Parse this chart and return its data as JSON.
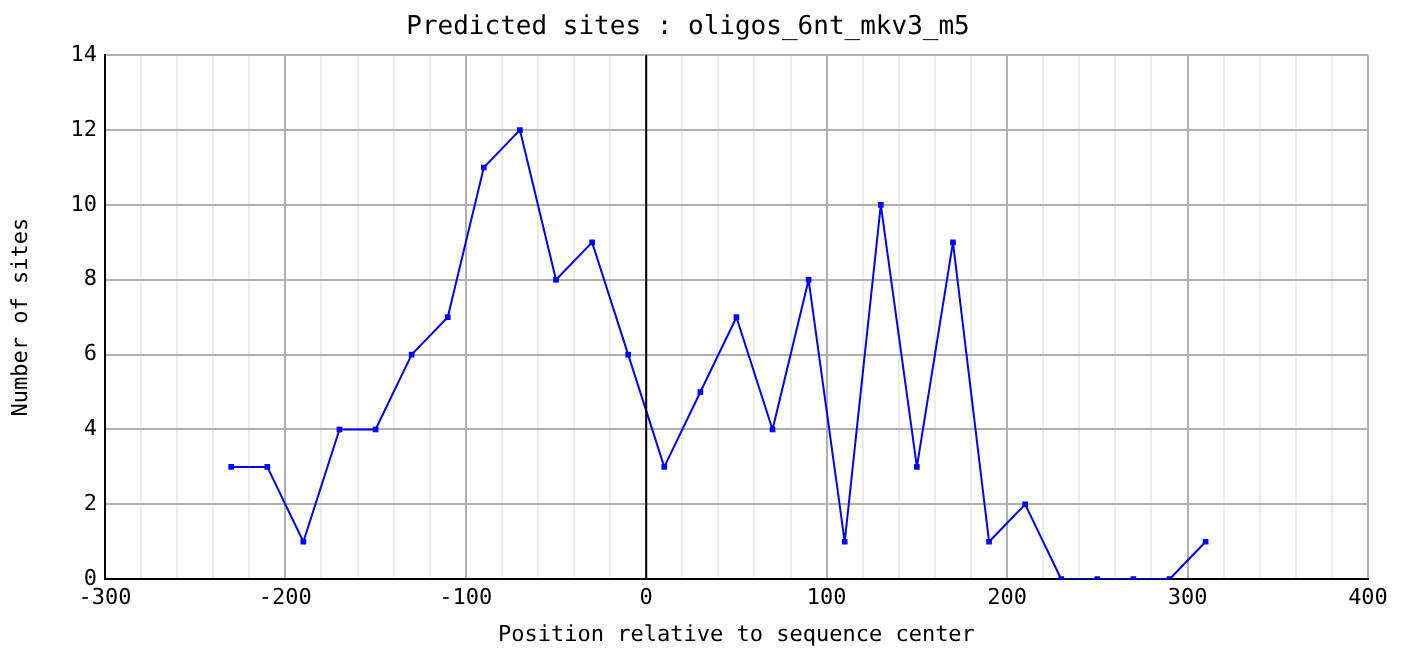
{
  "chart_data": {
    "type": "line",
    "title": "Predicted sites : oligos_6nt_mkv3_m5",
    "xlabel": "Position relative to sequence center",
    "ylabel": "Number of sites",
    "x": [
      -230,
      -210,
      -190,
      -170,
      -150,
      -130,
      -110,
      -90,
      -70,
      -50,
      -30,
      -10,
      10,
      30,
      50,
      70,
      90,
      110,
      130,
      150,
      170,
      190,
      210,
      230,
      250,
      270,
      290,
      310
    ],
    "series": [
      {
        "color": "#0000ff",
        "values": [
          3,
          3,
          1,
          4,
          4,
          6,
          7,
          11,
          12,
          8,
          9,
          6,
          3,
          5,
          7,
          4,
          8,
          1,
          10,
          3,
          9,
          1,
          2,
          0,
          0,
          0,
          0,
          1
        ]
      }
    ],
    "xlim": [
      -300,
      400
    ],
    "xticks": [
      -300,
      {
        "value": -280,
        "label": null
      },
      {
        "value": -260,
        "label": null
      },
      {
        "value": -240,
        "label": null
      },
      {
        "value": -220,
        "label": null
      },
      -200,
      {
        "value": -180,
        "label": null
      },
      {
        "value": -160,
        "label": null
      },
      {
        "value": -140,
        "label": null
      },
      {
        "value": -120,
        "label": null
      },
      -100,
      {
        "value": -80,
        "label": null
      },
      {
        "value": -60,
        "label": null
      },
      {
        "value": -40,
        "label": null
      },
      {
        "value": -20,
        "label": null
      },
      0,
      {
        "value": 20,
        "label": null
      },
      {
        "value": 40,
        "label": null
      },
      {
        "value": 60,
        "label": null
      },
      {
        "value": 80,
        "label": null
      },
      100,
      {
        "value": 120,
        "label": null
      },
      {
        "value": 140,
        "label": null
      },
      {
        "value": 160,
        "label": null
      },
      {
        "value": 180,
        "label": null
      },
      200,
      {
        "value": 220,
        "label": null
      },
      {
        "value": 240,
        "label": null
      },
      {
        "value": 260,
        "label": null
      },
      {
        "value": 280,
        "label": null
      },
      300,
      {
        "value": 320,
        "label": null
      },
      {
        "value": 340,
        "label": null
      },
      {
        "value": 360,
        "label": null
      },
      {
        "value": 380,
        "label": null
      },
      400
    ],
    "ylim": [
      0,
      14
    ],
    "yticks": [
      0,
      2,
      4,
      6,
      8,
      10,
      12,
      14
    ],
    "ref_lines": [
      {
        "axis": "x",
        "value": 0,
        "color": "#000000"
      }
    ],
    "grid": true,
    "legend": false,
    "marker": "square",
    "line_style": "solid"
  }
}
